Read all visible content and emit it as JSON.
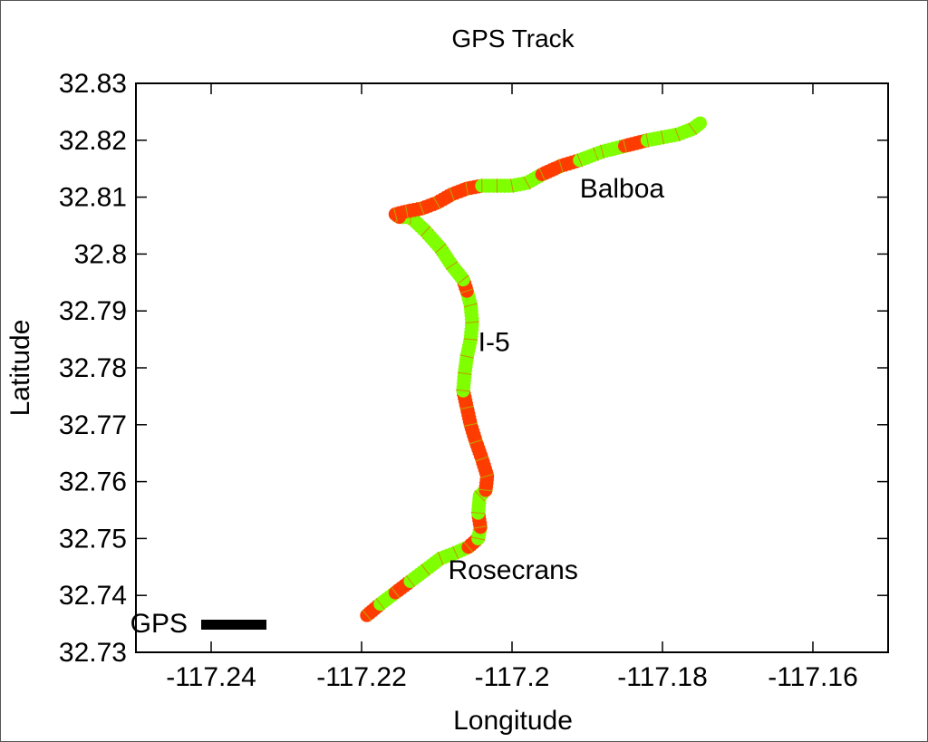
{
  "chart_data": {
    "type": "line",
    "title": "GPS Track",
    "xlabel": "Longitude",
    "ylabel": "Latitude",
    "xlim": [
      -117.25,
      -117.15
    ],
    "ylim": [
      32.73,
      32.83
    ],
    "xticks": [
      -117.24,
      -117.22,
      -117.2,
      -117.18,
      -117.16
    ],
    "xtick_labels": [
      "-117.24",
      "-117.22",
      "-117.2",
      "-117.18",
      "-117.16"
    ],
    "yticks": [
      32.73,
      32.74,
      32.75,
      32.76,
      32.77,
      32.78,
      32.79,
      32.8,
      32.81,
      32.82,
      32.83
    ],
    "ytick_labels": [
      "32.73",
      "32.74",
      "32.75",
      "32.76",
      "32.77",
      "32.78",
      "32.79",
      "32.8",
      "32.81",
      "32.82",
      "32.83"
    ],
    "grid": false,
    "legend": {
      "position": "bottom-left",
      "entries": [
        "GPS"
      ]
    },
    "colors": {
      "fast": "#80ff00",
      "slow": "#ff3c00",
      "legend": "#000000"
    },
    "annotations": [
      {
        "text": "Balboa",
        "x": -117.191,
        "y": 32.8115
      },
      {
        "text": "I-5",
        "x": -117.2045,
        "y": 32.7845
      },
      {
        "text": "Rosecrans",
        "x": -117.2085,
        "y": 32.7445
      }
    ],
    "series": [
      {
        "name": "GPS",
        "x": [
          -117.2193,
          -117.2175,
          -117.2155,
          -117.2135,
          -117.2115,
          -117.2095,
          -117.2075,
          -117.2058,
          -117.2045,
          -117.2042,
          -117.2045,
          -117.2043,
          -117.2035,
          -117.2033,
          -117.204,
          -117.2048,
          -117.2055,
          -117.206,
          -117.2065,
          -117.2063,
          -117.206,
          -117.2055,
          -117.2053,
          -117.2055,
          -117.206,
          -117.2065,
          -117.208,
          -117.2095,
          -117.2115,
          -117.2135,
          -117.215,
          -117.2155,
          -117.214,
          -117.212,
          -117.21,
          -117.208,
          -117.206,
          -117.204,
          -117.202,
          -117.2,
          -117.198,
          -117.196,
          -117.1935,
          -117.191,
          -117.188,
          -117.185,
          -117.182,
          -117.18,
          -117.178,
          -117.176,
          -117.175
        ],
        "y": [
          32.7365,
          32.7385,
          32.7405,
          32.7425,
          32.7445,
          32.7465,
          32.7475,
          32.7485,
          32.75,
          32.752,
          32.7545,
          32.7575,
          32.7585,
          32.761,
          32.764,
          32.767,
          32.77,
          32.773,
          32.776,
          32.779,
          32.782,
          32.785,
          32.788,
          32.791,
          32.7935,
          32.7955,
          32.798,
          32.801,
          32.804,
          32.8065,
          32.8065,
          32.807,
          32.8075,
          32.808,
          32.809,
          32.8105,
          32.8115,
          32.812,
          32.812,
          32.812,
          32.8125,
          32.814,
          32.8155,
          32.8165,
          32.818,
          32.819,
          32.82,
          32.8205,
          32.821,
          32.822,
          32.823
        ],
        "speed_class": [
          "slow",
          "fast",
          "slow",
          "fast",
          "fast",
          "fast",
          "fast",
          "slow",
          "fast",
          "slow",
          "fast",
          "fast",
          "slow",
          "slow",
          "slow",
          "slow",
          "slow",
          "slow",
          "fast",
          "fast",
          "fast",
          "fast",
          "fast",
          "fast",
          "slow",
          "fast",
          "fast",
          "fast",
          "fast",
          "fast",
          "slow",
          "slow",
          "slow",
          "slow",
          "slow",
          "slow",
          "slow",
          "fast",
          "fast",
          "fast",
          "fast",
          "slow",
          "slow",
          "fast",
          "fast",
          "slow",
          "fast",
          "fast",
          "fast",
          "fast"
        ]
      }
    ]
  }
}
